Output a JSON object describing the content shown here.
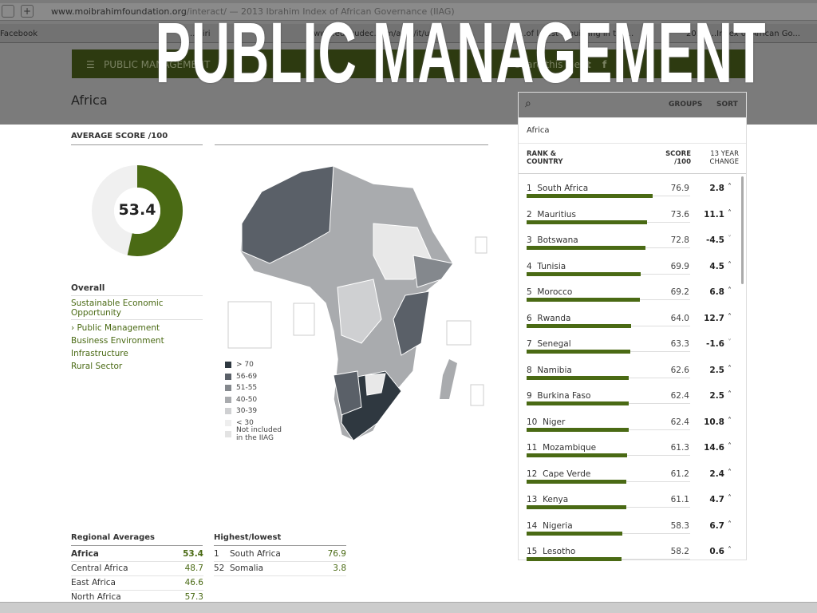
{
  "browser": {
    "url_host": "www.moibrahimfoundation.org",
    "url_rest": "/interact/ — 2013 Ibrahim Index of African Governance (IIAG)",
    "tabs": [
      "Facebook",
      "...hiri",
      "www.educudec.com/ap.../it/u...",
      "...of l...est ...building in the...",
      "2013 ...Index of African Go..."
    ]
  },
  "overlay_title": "PUBLIC MANAGEMENT",
  "nav": {
    "label": "PUBLIC MANAGEMENT",
    "share": "Share this view"
  },
  "region": "Africa",
  "avg": {
    "title": "AVERAGE SCORE /100",
    "value": "53.4",
    "fraction": 0.534,
    "color": "#4a6a14"
  },
  "categories": {
    "overall": "Overall",
    "items": [
      "Sustainable Economic Opportunity",
      "› Public Management",
      "Business Environment",
      "Infrastructure",
      "Rural Sector"
    ]
  },
  "legend": [
    {
      "label": "> 70",
      "color": "#2f3840"
    },
    {
      "label": "56-69",
      "color": "#5a6068"
    },
    {
      "label": "51-55",
      "color": "#84888d"
    },
    {
      "label": "40-50",
      "color": "#a9abae"
    },
    {
      "label": "30-39",
      "color": "#cfd0d2"
    },
    {
      "label": "< 30",
      "color": "#eeeeee"
    },
    {
      "label": "Not included in the IIAG",
      "color": "#e3e3e3"
    }
  ],
  "regional": {
    "title": "Regional Averages",
    "rows": [
      {
        "name": "Africa",
        "value": "53.4"
      },
      {
        "name": "Central Africa",
        "value": "48.7"
      },
      {
        "name": "East Africa",
        "value": "46.6"
      },
      {
        "name": "North Africa",
        "value": "57.3"
      }
    ]
  },
  "highlow": {
    "title": "Highest/lowest",
    "rows": [
      {
        "rank": "1",
        "name": "South Africa",
        "value": "76.9"
      },
      {
        "rank": "52",
        "name": "Somalia",
        "value": "3.8"
      }
    ]
  },
  "panel": {
    "groups": "GROUPS",
    "sort": "SORT",
    "region": "Africa",
    "col_rank": "RANK & COUNTRY",
    "col_score": "SCORE /100",
    "col_change": "13 YEAR CHANGE",
    "rows": [
      {
        "rank": "1",
        "name": "South Africa",
        "score": "76.9",
        "change": "2.8",
        "dir": "up"
      },
      {
        "rank": "2",
        "name": "Mauritius",
        "score": "73.6",
        "change": "11.1",
        "dir": "up"
      },
      {
        "rank": "3",
        "name": "Botswana",
        "score": "72.8",
        "change": "-4.5",
        "dir": "down"
      },
      {
        "rank": "4",
        "name": "Tunisia",
        "score": "69.9",
        "change": "4.5",
        "dir": "up"
      },
      {
        "rank": "5",
        "name": "Morocco",
        "score": "69.2",
        "change": "6.8",
        "dir": "up"
      },
      {
        "rank": "6",
        "name": "Rwanda",
        "score": "64.0",
        "change": "12.7",
        "dir": "up"
      },
      {
        "rank": "7",
        "name": "Senegal",
        "score": "63.3",
        "change": "-1.6",
        "dir": "down"
      },
      {
        "rank": "8",
        "name": "Namibia",
        "score": "62.6",
        "change": "2.5",
        "dir": "up"
      },
      {
        "rank": "9",
        "name": "Burkina Faso",
        "score": "62.4",
        "change": "2.5",
        "dir": "up"
      },
      {
        "rank": "10",
        "name": "Niger",
        "score": "62.4",
        "change": "10.8",
        "dir": "up"
      },
      {
        "rank": "11",
        "name": "Mozambique",
        "score": "61.3",
        "change": "14.6",
        "dir": "up"
      },
      {
        "rank": "12",
        "name": "Cape Verde",
        "score": "61.2",
        "change": "2.4",
        "dir": "up"
      },
      {
        "rank": "13",
        "name": "Kenya",
        "score": "61.1",
        "change": "4.7",
        "dir": "up"
      },
      {
        "rank": "14",
        "name": "Nigeria",
        "score": "58.3",
        "change": "6.7",
        "dir": "up"
      },
      {
        "rank": "15",
        "name": "Lesotho",
        "score": "58.2",
        "change": "0.6",
        "dir": "up"
      }
    ]
  }
}
